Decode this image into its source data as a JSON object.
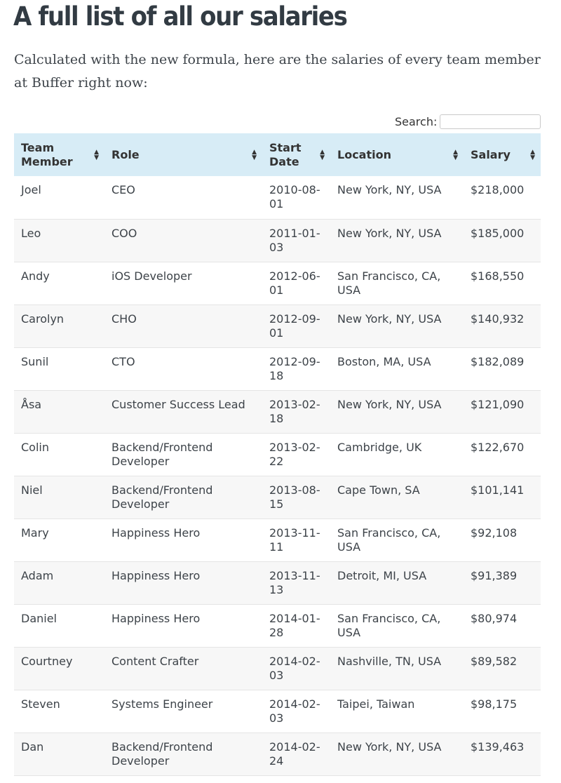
{
  "page": {
    "title": "A full list of all our salaries",
    "intro": "Calculated with the new formula, here are the salaries of every team member at Buffer right now:"
  },
  "search": {
    "label": "Search:",
    "value": "",
    "placeholder": ""
  },
  "table": {
    "columns": [
      "Team Member",
      "Role",
      "Start Date",
      "Location",
      "Salary"
    ],
    "rows": [
      [
        "Joel",
        "CEO",
        "2010-08-01",
        "New York, NY, USA",
        "$218,000"
      ],
      [
        "Leo",
        "COO",
        "2011-01-03",
        "New York, NY, USA",
        "$185,000"
      ],
      [
        "Andy",
        "iOS Developer",
        "2012-06-01",
        "San Francisco, CA, USA",
        "$168,550"
      ],
      [
        "Carolyn",
        "CHO",
        "2012-09-01",
        "New York, NY, USA",
        "$140,932"
      ],
      [
        "Sunil",
        "CTO",
        "2012-09-18",
        "Boston, MA, USA",
        "$182,089"
      ],
      [
        "Åsa",
        "Customer Success Lead",
        "2013-02-18",
        "New York, NY, USA",
        "$121,090"
      ],
      [
        "Colin",
        "Backend/Frontend Developer",
        "2013-02-22",
        "Cambridge, UK",
        "$122,670"
      ],
      [
        "Niel",
        "Backend/Frontend Developer",
        "2013-08-15",
        "Cape Town, SA",
        "$101,141"
      ],
      [
        "Mary",
        "Happiness Hero",
        "2013-11-11",
        "San Francisco, CA, USA",
        "$92,108"
      ],
      [
        "Adam",
        "Happiness Hero",
        "2013-11-13",
        "Detroit, MI, USA",
        "$91,389"
      ],
      [
        "Daniel",
        "Happiness Hero",
        "2014-01-28",
        "San Francisco, CA, USA",
        "$80,974"
      ],
      [
        "Courtney",
        "Content Crafter",
        "2014-02-03",
        "Nashville, TN, USA",
        "$89,582"
      ],
      [
        "Steven",
        "Systems Engineer",
        "2014-02-03",
        "Taipei, Taiwan",
        "$98,175"
      ],
      [
        "Dan",
        "Backend/Frontend Developer",
        "2014-02-24",
        "New York, NY, USA",
        "$139,463"
      ]
    ]
  },
  "icons": {
    "sort": "sort-both-icon"
  },
  "colors": {
    "header_bg": "#d7ecf6",
    "stripe_bg": "#f7f7f7",
    "title": "#323b43"
  }
}
